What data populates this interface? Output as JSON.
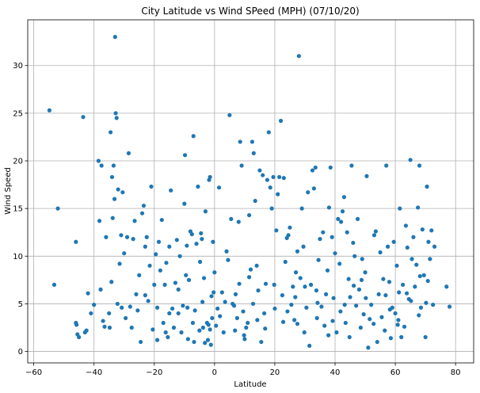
{
  "chart_data": {
    "type": "scatter",
    "title": "City Latitude vs Wind SPeed (MPH) (07/10/20)",
    "xlabel": "Latitude",
    "ylabel": "Wind Speed",
    "xlim": [
      -62,
      86
    ],
    "ylim": [
      -1.2,
      34.8
    ],
    "xticks": [
      -60,
      -40,
      -20,
      0,
      20,
      40,
      60,
      80
    ],
    "yticks": [
      0,
      5,
      10,
      15,
      20,
      25,
      30
    ],
    "grid": true,
    "marker_color": "#1f77b4",
    "points": [
      [
        -54.8,
        25.3
      ],
      [
        -53.2,
        7.0
      ],
      [
        -52.0,
        15.0
      ],
      [
        -46.0,
        3.0
      ],
      [
        -46.0,
        11.5
      ],
      [
        -45.5,
        1.8
      ],
      [
        -45.0,
        1.5
      ],
      [
        -43.6,
        24.6
      ],
      [
        -43.0,
        2.0
      ],
      [
        -42.5,
        2.2
      ],
      [
        -42.0,
        6.1
      ],
      [
        -41.0,
        4.0
      ],
      [
        -38.5,
        20.0
      ],
      [
        -38.2,
        13.7
      ],
      [
        -37.8,
        6.5
      ],
      [
        -37.5,
        19.5
      ],
      [
        -37.0,
        3.2
      ],
      [
        -36.0,
        12.0
      ],
      [
        -35.0,
        4.0
      ],
      [
        -34.8,
        2.5
      ],
      [
        -34.5,
        23.0
      ],
      [
        -34.2,
        7.3
      ],
      [
        -34.0,
        18.3
      ],
      [
        -33.8,
        14.0
      ],
      [
        -33.5,
        19.5
      ],
      [
        -33.2,
        16.0
      ],
      [
        -33.0,
        33.0
      ],
      [
        -32.8,
        25.0
      ],
      [
        -32.5,
        24.5
      ],
      [
        -32.2,
        5.0
      ],
      [
        -32.0,
        17.0
      ],
      [
        -31.5,
        9.2
      ],
      [
        -31.0,
        12.2
      ],
      [
        -30.5,
        16.7
      ],
      [
        -30.0,
        10.3
      ],
      [
        -29.5,
        3.5
      ],
      [
        -29.0,
        12.0
      ],
      [
        -28.5,
        20.8
      ],
      [
        -28.0,
        4.7
      ],
      [
        -27.0,
        11.8
      ],
      [
        -26.5,
        13.7
      ],
      [
        -26.0,
        6.0
      ],
      [
        -25.5,
        4.3
      ],
      [
        -25.0,
        8.0
      ],
      [
        -24.5,
        1.0
      ],
      [
        -24.0,
        14.5
      ],
      [
        -23.5,
        15.3
      ],
      [
        -23.0,
        11.0
      ],
      [
        -22.5,
        12.0
      ],
      [
        -22.0,
        5.3
      ],
      [
        -21.5,
        9.0
      ],
      [
        -21.0,
        17.3
      ],
      [
        -20.5,
        2.3
      ],
      [
        -20.0,
        7.0
      ],
      [
        -19.5,
        10.2
      ],
      [
        -19.0,
        4.6
      ],
      [
        -18.5,
        11.5
      ],
      [
        -18.0,
        8.5
      ],
      [
        -17.5,
        13.8
      ],
      [
        -17.0,
        3.0
      ],
      [
        -16.5,
        7.0
      ],
      [
        -16.0,
        9.3
      ],
      [
        -15.5,
        1.5
      ],
      [
        -15.0,
        11.0
      ],
      [
        -14.5,
        16.9
      ],
      [
        -14.0,
        4.5
      ],
      [
        -13.5,
        2.5
      ],
      [
        -13.0,
        7.2
      ],
      [
        -12.5,
        11.7
      ],
      [
        -12.0,
        4.0
      ],
      [
        -11.5,
        10.0
      ],
      [
        -11.0,
        2.0
      ],
      [
        -10.5,
        4.8
      ],
      [
        -10.0,
        15.5
      ],
      [
        -9.8,
        20.6
      ],
      [
        -9.5,
        8.0
      ],
      [
        -9.2,
        11.1
      ],
      [
        -9.0,
        4.6
      ],
      [
        -8.5,
        7.5
      ],
      [
        -8.0,
        12.6
      ],
      [
        -7.5,
        12.3
      ],
      [
        -7.2,
        3.0
      ],
      [
        -7.0,
        22.6
      ],
      [
        -6.5,
        4.3
      ],
      [
        -6.0,
        11.3
      ],
      [
        -5.5,
        17.3
      ],
      [
        -5.0,
        2.2
      ],
      [
        -4.8,
        9.4
      ],
      [
        -4.5,
        12.4
      ],
      [
        -4.2,
        11.8
      ],
      [
        -4.0,
        5.2
      ],
      [
        -3.8,
        2.5
      ],
      [
        -3.5,
        7.7
      ],
      [
        -3.0,
        14.7
      ],
      [
        -2.5,
        3.0
      ],
      [
        -2.2,
        1.2
      ],
      [
        -2.0,
        2.8
      ],
      [
        -1.8,
        18.0
      ],
      [
        -1.5,
        18.3
      ],
      [
        -1.2,
        0.7
      ],
      [
        -1.0,
        5.8
      ],
      [
        -0.8,
        3.5
      ],
      [
        -0.5,
        11.5
      ],
      [
        -0.3,
        6.2
      ],
      [
        0.0,
        8.3
      ],
      [
        0.5,
        2.7
      ],
      [
        1.0,
        4.5
      ],
      [
        1.5,
        17.2
      ],
      [
        2.5,
        6.2
      ],
      [
        3.0,
        2.0
      ],
      [
        4.0,
        10.5
      ],
      [
        4.5,
        9.6
      ],
      [
        5.0,
        24.8
      ],
      [
        5.5,
        13.9
      ],
      [
        6.0,
        5.0
      ],
      [
        6.5,
        4.8
      ],
      [
        7.0,
        6.0
      ],
      [
        7.5,
        3.5
      ],
      [
        8.0,
        13.6
      ],
      [
        8.5,
        22.0
      ],
      [
        9.0,
        19.5
      ],
      [
        9.5,
        4.2
      ],
      [
        10.0,
        1.3
      ],
      [
        10.5,
        2.5
      ],
      [
        11.0,
        3.0
      ],
      [
        11.5,
        14.3
      ],
      [
        12.0,
        8.6
      ],
      [
        12.5,
        22.0
      ],
      [
        13.0,
        20.8
      ],
      [
        13.5,
        15.8
      ],
      [
        14.0,
        9.0
      ],
      [
        14.5,
        6.4
      ],
      [
        15.0,
        19.0
      ],
      [
        15.5,
        1.0
      ],
      [
        16.0,
        18.5
      ],
      [
        16.5,
        4.0
      ],
      [
        17.0,
        7.1
      ],
      [
        17.5,
        18.0
      ],
      [
        18.0,
        23.0
      ],
      [
        18.5,
        17.2
      ],
      [
        19.0,
        15.0
      ],
      [
        19.5,
        18.3
      ],
      [
        20.0,
        4.5
      ],
      [
        20.5,
        12.7
      ],
      [
        21.0,
        16.5
      ],
      [
        21.5,
        18.3
      ],
      [
        22.0,
        24.2
      ],
      [
        22.5,
        5.9
      ],
      [
        23.0,
        18.2
      ],
      [
        23.5,
        9.4
      ],
      [
        24.0,
        11.9
      ],
      [
        24.5,
        12.2
      ],
      [
        25.0,
        13.0
      ],
      [
        25.5,
        4.9
      ],
      [
        26.0,
        6.8
      ],
      [
        26.5,
        3.3
      ],
      [
        27.0,
        8.3
      ],
      [
        27.5,
        10.5
      ],
      [
        28.0,
        31.0
      ],
      [
        28.5,
        7.7
      ],
      [
        29.0,
        15.0
      ],
      [
        29.5,
        11.0
      ],
      [
        30.0,
        6.8
      ],
      [
        30.5,
        4.6
      ],
      [
        31.0,
        16.7
      ],
      [
        31.5,
        0.6
      ],
      [
        32.0,
        7.0
      ],
      [
        32.5,
        19.0
      ],
      [
        33.0,
        17.1
      ],
      [
        33.5,
        19.3
      ],
      [
        34.0,
        3.5
      ],
      [
        34.5,
        9.6
      ],
      [
        35.0,
        11.8
      ],
      [
        35.5,
        4.7
      ],
      [
        36.0,
        12.5
      ],
      [
        36.5,
        2.7
      ],
      [
        37.0,
        6.0
      ],
      [
        37.5,
        8.5
      ],
      [
        38.0,
        15.1
      ],
      [
        38.5,
        19.3
      ],
      [
        39.0,
        12.0
      ],
      [
        39.5,
        5.6
      ],
      [
        40.0,
        10.3
      ],
      [
        40.5,
        2.0
      ],
      [
        41.0,
        13.9
      ],
      [
        41.5,
        9.2
      ],
      [
        42.0,
        13.6
      ],
      [
        42.5,
        14.7
      ],
      [
        43.0,
        16.2
      ],
      [
        43.5,
        3.0
      ],
      [
        44.0,
        12.5
      ],
      [
        44.5,
        7.6
      ],
      [
        45.0,
        5.7
      ],
      [
        45.5,
        19.5
      ],
      [
        46.0,
        11.4
      ],
      [
        46.5,
        10.0
      ],
      [
        47.0,
        4.8
      ],
      [
        47.5,
        13.9
      ],
      [
        48.0,
        6.5
      ],
      [
        48.5,
        2.5
      ],
      [
        49.0,
        9.7
      ],
      [
        49.5,
        3.9
      ],
      [
        50.0,
        8.3
      ],
      [
        50.5,
        18.4
      ],
      [
        51.0,
        0.4
      ],
      [
        51.5,
        3.4
      ],
      [
        52.0,
        4.9
      ],
      [
        53.0,
        12.2
      ],
      [
        53.5,
        12.6
      ],
      [
        54.0,
        1.0
      ],
      [
        54.5,
        6.0
      ],
      [
        55.0,
        10.4
      ],
      [
        55.5,
        3.6
      ],
      [
        56.0,
        7.6
      ],
      [
        56.5,
        2.2
      ],
      [
        57.0,
        19.5
      ],
      [
        57.5,
        11.0
      ],
      [
        58.0,
        7.3
      ],
      [
        58.5,
        1.4
      ],
      [
        59.0,
        4.6
      ],
      [
        59.5,
        11.5
      ],
      [
        60.0,
        4.0
      ],
      [
        60.5,
        9.0
      ],
      [
        61.0,
        3.3
      ],
      [
        61.5,
        15.0
      ],
      [
        62.0,
        1.5
      ],
      [
        62.5,
        7.0
      ],
      [
        63.0,
        2.6
      ],
      [
        63.5,
        13.2
      ],
      [
        64.0,
        10.9
      ],
      [
        64.5,
        5.5
      ],
      [
        65.0,
        20.1
      ],
      [
        65.5,
        9.7
      ],
      [
        66.0,
        12.0
      ],
      [
        66.5,
        6.8
      ],
      [
        67.0,
        9.1
      ],
      [
        67.5,
        15.1
      ],
      [
        68.0,
        19.5
      ],
      [
        68.5,
        4.6
      ],
      [
        69.0,
        12.8
      ],
      [
        69.5,
        8.0
      ],
      [
        70.0,
        1.5
      ],
      [
        70.5,
        17.3
      ],
      [
        71.0,
        11.5
      ],
      [
        71.5,
        9.7
      ],
      [
        72.0,
        12.7
      ],
      [
        72.5,
        4.9
      ],
      [
        73.0,
        11.0
      ],
      [
        77.0,
        6.8
      ],
      [
        78.0,
        4.7
      ],
      [
        -40.0,
        4.9
      ],
      [
        -36.5,
        2.6
      ],
      [
        -27.5,
        2.5
      ],
      [
        -19.0,
        1.2
      ],
      [
        -12.0,
        6.5
      ],
      [
        -6.8,
        1.0
      ],
      [
        -3.2,
        0.9
      ],
      [
        3.5,
        5.2
      ],
      [
        6.8,
        2.2
      ],
      [
        9.8,
        1.7
      ],
      [
        12.8,
        5.0
      ],
      [
        16.8,
        2.4
      ],
      [
        19.8,
        7.0
      ],
      [
        22.8,
        3.1
      ],
      [
        26.8,
        5.7
      ],
      [
        29.8,
        2.0
      ],
      [
        33.8,
        6.4
      ],
      [
        37.8,
        1.7
      ],
      [
        41.8,
        4.2
      ],
      [
        44.8,
        1.5
      ],
      [
        48.8,
        7.5
      ],
      [
        52.8,
        2.9
      ],
      [
        56.8,
        5.9
      ],
      [
        60.8,
        2.8
      ],
      [
        63.8,
        6.1
      ],
      [
        67.8,
        3.8
      ],
      [
        70.8,
        7.4
      ],
      [
        -23.0,
        5.9
      ],
      [
        -15.0,
        4.0
      ],
      [
        -8.8,
        1.3
      ],
      [
        1.8,
        3.7
      ],
      [
        8.2,
        7.1
      ],
      [
        14.2,
        3.3
      ],
      [
        24.2,
        4.2
      ],
      [
        34.2,
        5.1
      ],
      [
        43.2,
        4.9
      ],
      [
        50.2,
        5.6
      ],
      [
        58.2,
        4.4
      ],
      [
        65.2,
        5.3
      ],
      [
        70.2,
        5.1
      ],
      [
        -45.8,
        2.8
      ],
      [
        -30.8,
        4.6
      ],
      [
        -16.2,
        2.0
      ],
      [
        -1.5,
        2.3
      ],
      [
        11.5,
        7.8
      ],
      [
        27.5,
        2.9
      ],
      [
        39.2,
        3.2
      ],
      [
        46.2,
        6.9
      ],
      [
        61.2,
        6.2
      ],
      [
        68.2,
        7.9
      ]
    ]
  }
}
